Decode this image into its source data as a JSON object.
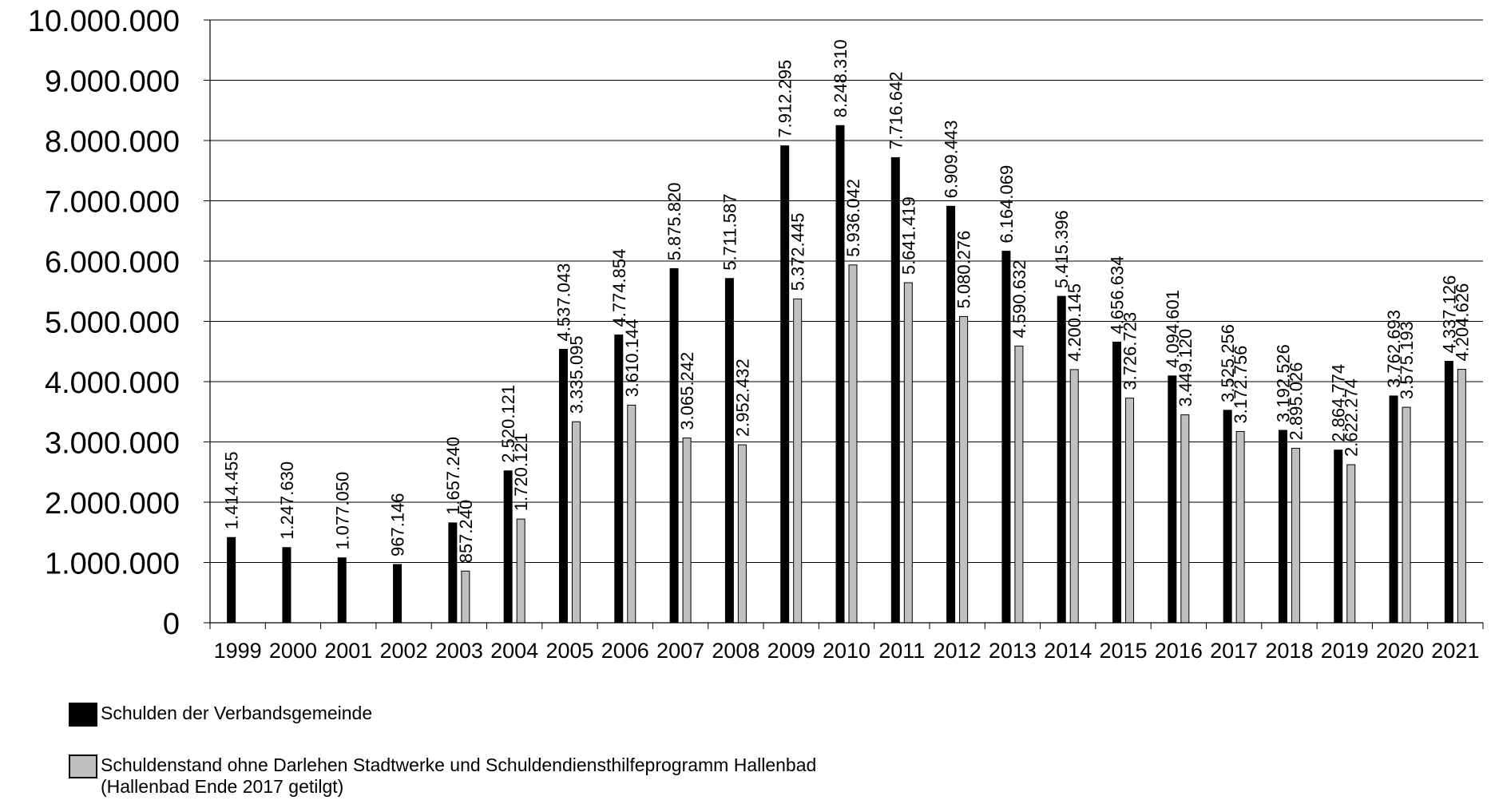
{
  "chart_data": {
    "type": "bar",
    "categories": [
      "1999",
      "2000",
      "2001",
      "2002",
      "2003",
      "2004",
      "2005",
      "2006",
      "2007",
      "2008",
      "2009",
      "2010",
      "2011",
      "2012",
      "2013",
      "2014",
      "2015",
      "2016",
      "2017",
      "2018",
      "2019",
      "2020",
      "2021"
    ],
    "series": [
      {
        "name": "Schulden der Verbandsgemeinde",
        "color": "#000000",
        "values": [
          1414455,
          1247630,
          1077050,
          967146,
          1657240,
          2520121,
          4537043,
          4774854,
          5875820,
          5711587,
          7912295,
          8248310,
          7716642,
          6909443,
          6164069,
          5415396,
          4656634,
          4094601,
          3525256,
          3192526,
          2864774,
          3762693,
          4337126
        ],
        "labels": [
          "1.414.455",
          "1.247.630",
          "1.077.050",
          "967.146",
          "1.657.240",
          "2.520.121",
          "4.537.043",
          "4.774.854",
          "5.875.820",
          "5.711.587",
          "7.912.295",
          "8.248.310",
          "7.716.642",
          "6.909.443",
          "6.164.069",
          "5.415.396",
          "4.656.634",
          "4.094.601",
          "3.525.256",
          "3.192.526",
          "2.864.774",
          "3.762.693",
          "4.337.126"
        ]
      },
      {
        "name": "Schuldenstand ohne Darlehen Stadtwerke und Schuldendiensthilfeprogramm Hallenbad",
        "name_line2": "(Hallenbad Ende 2017 getilgt)",
        "color": "#c0c0c0",
        "values": [
          null,
          null,
          null,
          null,
          857240,
          1720121,
          3335095,
          3610144,
          3065242,
          2952432,
          5372445,
          5936042,
          5641419,
          5080276,
          4590632,
          4200145,
          3726723,
          3449120,
          3172756,
          2895026,
          2622274,
          3575193,
          4204626
        ],
        "labels": [
          null,
          null,
          null,
          null,
          "857.240",
          "1.720.121",
          "3.335.095",
          "3.610.144",
          "3.065.242",
          "2.952.432",
          "5.372.445",
          "5.936.042",
          "5.641.419",
          "5.080.276",
          "4.590.632",
          "4.200.145",
          "3.726.723",
          "3.449.120",
          "3.172.756",
          "2.895.026",
          "2.622.274",
          "3.575.193",
          "4.204.626"
        ]
      }
    ],
    "y_ticks": [
      "0",
      "1.000.000",
      "2.000.000",
      "3.000.000",
      "4.000.000",
      "5.000.000",
      "6.000.000",
      "7.000.000",
      "8.000.000",
      "9.000.000",
      "10.000.000"
    ],
    "ylim": [
      0,
      10000000
    ],
    "grid": true,
    "legend_position": "bottom-left"
  }
}
